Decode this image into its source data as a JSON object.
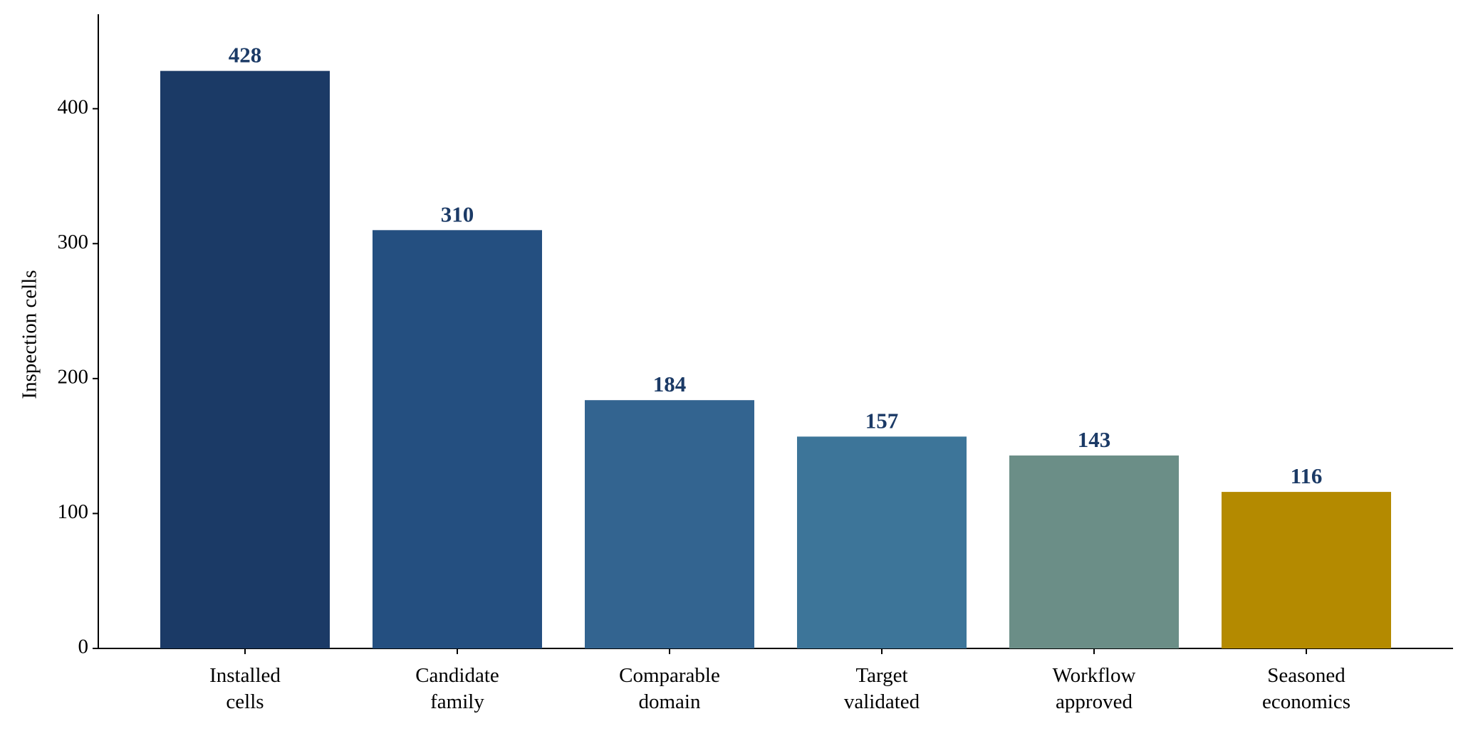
{
  "chart_data": {
    "type": "bar",
    "title": "",
    "xlabel": "",
    "ylabel": "Inspection cells",
    "ylim": [
      0,
      470
    ],
    "yticks": [
      0,
      100,
      200,
      300,
      400
    ],
    "grid": false,
    "categories": [
      [
        "Installed",
        "cells"
      ],
      [
        "Candidate",
        "family"
      ],
      [
        "Comparable",
        "domain"
      ],
      [
        "Target",
        "validated"
      ],
      [
        "Workflow",
        "approved"
      ],
      [
        "Seasoned",
        "economics"
      ]
    ],
    "values": [
      428,
      310,
      184,
      157,
      143,
      116
    ],
    "value_labels": [
      "428",
      "310",
      "184",
      "157",
      "143",
      "116"
    ],
    "colors": [
      "#1b3a66",
      "#244f80",
      "#336490",
      "#3d7599",
      "#6b8e87",
      "#b48a00"
    ],
    "label_color": "#1b3a66"
  }
}
